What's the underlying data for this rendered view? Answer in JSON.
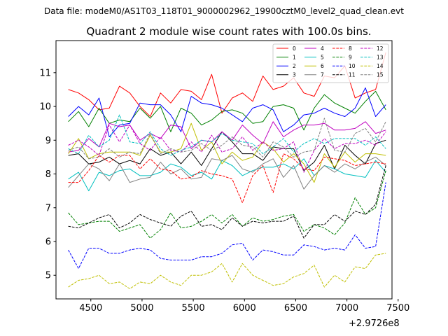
{
  "header": {
    "subtitle": "Data file: modeM0/AS1T03_118T01_9000002962_19900cztM0_level2_quad_clean.evt",
    "title": "Quadrant 2 module wise count rates with 100.0s bins."
  },
  "chart_data": {
    "type": "line",
    "title": "Quadrant 2 module wise count rates with 100.0s bins.",
    "xlabel": "",
    "ylabel": "",
    "x_offset_label": "+2.9726e8",
    "xlim": [
      4160,
      7440
    ],
    "ylim": [
      4.3,
      11.95
    ],
    "xticks": [
      4500,
      5000,
      5500,
      6000,
      6500,
      7000,
      7500
    ],
    "xtick_labels": [
      "4500",
      "5000",
      "5500",
      "6000",
      "6500",
      "7000",
      "7500"
    ],
    "yticks": [
      5,
      6,
      7,
      8,
      9,
      10,
      11
    ],
    "ytick_labels": [
      "5",
      "6",
      "7",
      "8",
      "9",
      "10",
      "11"
    ],
    "grid": false,
    "legend_position": "top-right",
    "legend_columns": 4,
    "x": [
      4280,
      4380,
      4480,
      4580,
      4680,
      4780,
      4880,
      4980,
      5080,
      5180,
      5280,
      5380,
      5480,
      5580,
      5680,
      5780,
      5880,
      5980,
      6080,
      6180,
      6280,
      6380,
      6480,
      6580,
      6680,
      6780,
      6880,
      6980,
      7080,
      7180,
      7280,
      7380
    ],
    "series": [
      {
        "name": "0",
        "color": "#ff0000",
        "dash": "solid",
        "values": [
          10.5,
          10.4,
          10.2,
          9.9,
          9.95,
          10.6,
          10.4,
          10.0,
          9.7,
          10.4,
          10.1,
          10.5,
          10.45,
          10.2,
          10.95,
          9.8,
          10.25,
          10.4,
          10.15,
          10.9,
          10.5,
          10.6,
          10.85,
          10.4,
          10.3,
          10.9,
          10.85,
          11.2,
          10.25,
          10.4,
          10.5,
          11.6
        ]
      },
      {
        "name": "1",
        "color": "#008000",
        "dash": "solid",
        "values": [
          9.55,
          9.85,
          9.4,
          9.95,
          9.5,
          9.6,
          9.55,
          9.95,
          9.65,
          10.0,
          9.25,
          9.95,
          9.8,
          9.45,
          9.6,
          9.85,
          9.9,
          9.8,
          9.5,
          9.55,
          10.0,
          10.05,
          9.95,
          9.3,
          9.95,
          10.35,
          10.1,
          9.95,
          9.8,
          10.15,
          10.45,
          9.9
        ]
      },
      {
        "name": "2",
        "color": "#0000ff",
        "dash": "solid",
        "values": [
          9.7,
          10.0,
          9.75,
          10.25,
          9.1,
          9.45,
          9.5,
          10.1,
          10.05,
          10.05,
          9.75,
          9.25,
          10.3,
          10.1,
          10.05,
          9.95,
          9.75,
          9.55,
          9.95,
          10.05,
          9.9,
          9.25,
          9.45,
          9.75,
          9.8,
          9.95,
          9.8,
          9.7,
          9.95,
          10.55,
          9.7,
          10.05
        ]
      },
      {
        "name": "3",
        "color": "#000000",
        "dash": "solid",
        "values": [
          8.55,
          8.6,
          8.3,
          8.35,
          8.5,
          8.3,
          8.4,
          8.3,
          8.75,
          8.55,
          8.65,
          8.3,
          8.65,
          8.25,
          8.75,
          9.25,
          8.95,
          8.6,
          8.6,
          8.4,
          8.8,
          8.75,
          8.75,
          8.1,
          8.35,
          8.85,
          8.15,
          8.85,
          8.55,
          8.3,
          8.9,
          9.0
        ]
      },
      {
        "name": "4",
        "color": "#bf00bf",
        "dash": "solid",
        "values": [
          8.65,
          8.7,
          9.05,
          8.8,
          9.5,
          9.4,
          9.45,
          9.0,
          9.2,
          9.05,
          9.45,
          9.4,
          8.75,
          9.0,
          8.95,
          9.25,
          9.0,
          9.45,
          9.15,
          8.9,
          9.55,
          9.1,
          9.3,
          9.45,
          9.45,
          9.5,
          9.3,
          9.3,
          9.35,
          9.55,
          9.2,
          9.3
        ]
      },
      {
        "name": "5",
        "color": "#00bfbf",
        "dash": "solid",
        "values": [
          7.85,
          8.05,
          7.5,
          8.05,
          7.95,
          8.1,
          8.15,
          7.95,
          7.95,
          8.05,
          8.3,
          8.2,
          7.95,
          8.05,
          7.85,
          8.4,
          8.25,
          7.95,
          8.1,
          8.2,
          8.2,
          8.3,
          8.15,
          8.45,
          7.95,
          8.25,
          8.15,
          8.0,
          7.95,
          7.9,
          8.4,
          8.05
        ]
      },
      {
        "name": "6",
        "color": "#bfbf00",
        "dash": "solid",
        "values": [
          8.6,
          9.05,
          8.45,
          8.6,
          8.65,
          8.65,
          8.65,
          8.55,
          9.15,
          8.65,
          8.65,
          8.75,
          9.5,
          8.7,
          8.95,
          8.3,
          8.65,
          8.4,
          8.5,
          8.95,
          8.75,
          8.35,
          8.6,
          8.3,
          7.75,
          8.6,
          8.2,
          8.65,
          8.35,
          8.6,
          8.6,
          8.55
        ]
      },
      {
        "name": "7",
        "color": "#808080",
        "dash": "solid",
        "values": [
          7.6,
          7.95,
          8.3,
          8.15,
          7.8,
          8.3,
          7.75,
          7.85,
          7.9,
          8.35,
          8.0,
          8.15,
          7.85,
          7.9,
          8.45,
          8.4,
          8.55,
          8.15,
          8.05,
          8.3,
          8.45,
          7.9,
          8.25,
          7.55,
          7.95,
          8.25,
          8.05,
          8.3,
          8.15,
          8.35,
          8.5,
          8.25
        ]
      },
      {
        "name": "8",
        "color": "#ff0000",
        "dash": "dashed",
        "values": [
          7.75,
          7.75,
          8.1,
          8.55,
          8.35,
          8.55,
          8.55,
          8.15,
          8.45,
          8.15,
          8.1,
          7.85,
          7.9,
          8.1,
          8.0,
          7.95,
          7.85,
          7.15,
          7.95,
          8.25,
          7.45,
          8.6,
          8.45,
          8.15,
          8.1,
          8.5,
          8.45,
          8.4,
          8.25,
          8.3,
          8.35,
          8.3
        ]
      },
      {
        "name": "9",
        "color": "#008000",
        "dash": "dashed",
        "values": [
          6.85,
          6.5,
          6.55,
          6.6,
          6.6,
          6.3,
          6.4,
          6.5,
          6.1,
          6.35,
          6.85,
          6.4,
          6.45,
          6.6,
          6.8,
          6.55,
          6.8,
          6.45,
          6.7,
          6.6,
          6.65,
          6.75,
          6.8,
          6.3,
          6.5,
          6.4,
          6.2,
          6.55,
          7.3,
          6.8,
          7.0,
          8.1
        ]
      },
      {
        "name": "10",
        "color": "#0000ff",
        "dash": "dashed",
        "values": [
          5.75,
          5.2,
          5.8,
          5.8,
          5.65,
          5.65,
          5.75,
          5.8,
          5.75,
          5.5,
          5.45,
          5.45,
          5.45,
          5.55,
          5.55,
          5.65,
          5.9,
          5.95,
          5.45,
          5.75,
          5.7,
          5.6,
          5.6,
          5.9,
          5.85,
          5.75,
          5.8,
          5.75,
          6.2,
          5.8,
          5.85,
          7.75
        ]
      },
      {
        "name": "11",
        "color": "#000000",
        "dash": "dashed",
        "values": [
          6.45,
          6.4,
          6.55,
          6.7,
          6.8,
          6.4,
          6.55,
          6.8,
          6.65,
          6.55,
          6.45,
          6.75,
          6.9,
          6.45,
          6.5,
          6.35,
          6.7,
          6.45,
          6.6,
          6.55,
          6.6,
          6.6,
          6.75,
          6.1,
          6.5,
          6.5,
          6.8,
          6.6,
          6.9,
          6.8,
          7.1,
          8.25
        ]
      },
      {
        "name": "12",
        "color": "#bf00bf",
        "dash": "dashed",
        "values": [
          8.85,
          9.0,
          8.8,
          8.55,
          9.45,
          8.95,
          9.45,
          8.9,
          8.7,
          9.1,
          8.7,
          8.65,
          8.95,
          8.65,
          9.15,
          8.65,
          8.75,
          9.1,
          8.7,
          8.95,
          8.7,
          8.75,
          8.95,
          8.05,
          8.7,
          9.05,
          8.75,
          8.9,
          8.9,
          9.0,
          8.85,
          9.25
        ]
      },
      {
        "name": "13",
        "color": "#00bfbf",
        "dash": "dashed",
        "values": [
          8.75,
          8.6,
          9.15,
          8.8,
          9.0,
          9.75,
          8.95,
          8.9,
          9.25,
          8.75,
          8.55,
          8.7,
          8.8,
          9.0,
          8.95,
          9.2,
          9.0,
          8.95,
          8.9,
          8.6,
          8.8,
          9.05,
          8.65,
          8.9,
          9.05,
          8.9,
          9.05,
          9.05,
          9.05,
          8.85,
          9.1,
          8.75
        ]
      },
      {
        "name": "14",
        "color": "#bfbf00",
        "dash": "dashed",
        "values": [
          4.65,
          4.85,
          4.9,
          5.0,
          4.75,
          4.8,
          4.6,
          4.8,
          4.75,
          5.0,
          4.8,
          4.7,
          5.0,
          5.0,
          5.1,
          5.35,
          4.8,
          5.35,
          5.0,
          4.85,
          4.7,
          4.75,
          4.95,
          5.05,
          5.3,
          4.65,
          5.0,
          4.8,
          5.25,
          5.2,
          5.6,
          5.65
        ]
      },
      {
        "name": "15",
        "color": "#808080",
        "dash": "dashed",
        "values": [
          8.7,
          8.8,
          8.45,
          8.5,
          8.75,
          8.5,
          8.65,
          8.6,
          9.2,
          8.6,
          8.75,
          8.65,
          8.7,
          8.9,
          8.7,
          8.85,
          9.1,
          8.85,
          8.8,
          8.5,
          8.95,
          8.8,
          8.5,
          8.65,
          8.7,
          9.65,
          8.7,
          8.65,
          9.2,
          9.35,
          8.95,
          9.55
        ]
      }
    ]
  }
}
